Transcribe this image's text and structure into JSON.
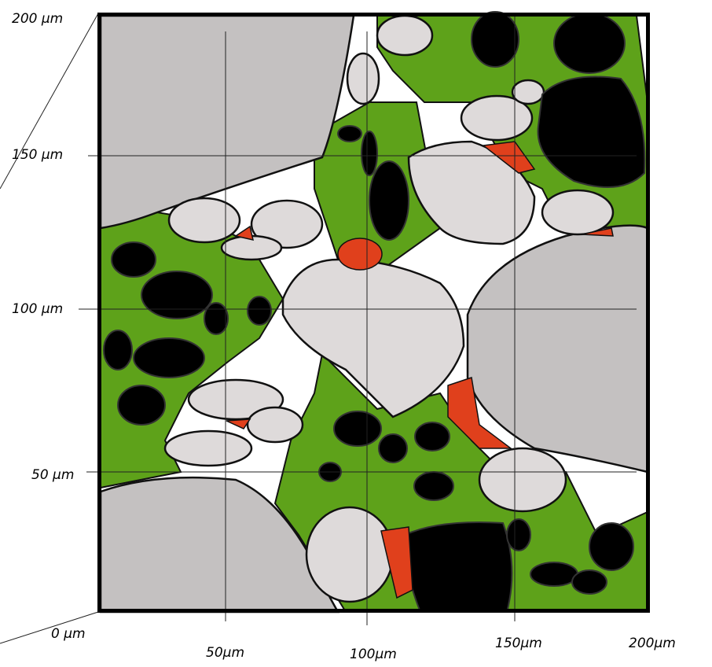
{
  "y_axis_labels": [
    "200 µm",
    "150 µm",
    "100 µm",
    "50 µm"
  ],
  "x_axis_labels": [
    "0 µm",
    "50µm",
    "100µm",
    "150µm",
    "200µm"
  ]
}
